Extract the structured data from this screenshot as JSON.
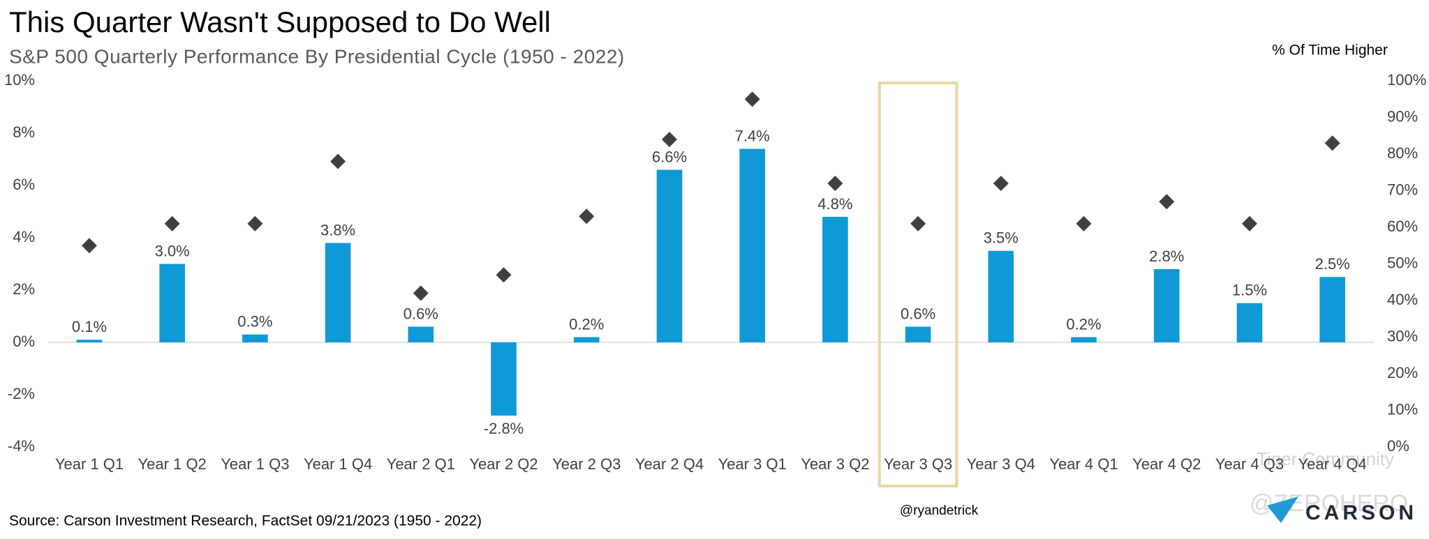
{
  "chart_data": {
    "type": "bar",
    "title": "This Quarter Wasn't Supposed to Do Well",
    "subtitle": "S&P 500 Quarterly Performance By Presidential Cycle (1950 - 2022)",
    "y2_label": "% Of Time Higher",
    "source": "Source: Carson Investment Research, FactSet 09/21/2023 (1950 - 2022)",
    "handle": "@ryandetrick",
    "logo": "CARSON",
    "watermarks": [
      "Tiger Community",
      "@ZEROHERO"
    ],
    "categories": [
      "Year 1 Q1",
      "Year 1 Q2",
      "Year 1 Q3",
      "Year 1 Q4",
      "Year 2 Q1",
      "Year 2 Q2",
      "Year 2 Q3",
      "Year 2 Q4",
      "Year 3 Q1",
      "Year 3 Q2",
      "Year 3 Q3",
      "Year 3 Q4",
      "Year 4 Q1",
      "Year 4 Q2",
      "Year 4 Q3",
      "Year 4 Q4"
    ],
    "series": [
      {
        "type": "bar",
        "color": "#0f99d6",
        "values": [
          0.1,
          3.0,
          0.3,
          3.8,
          0.6,
          -2.8,
          0.2,
          6.6,
          7.4,
          4.8,
          0.6,
          3.5,
          0.2,
          2.8,
          1.5,
          2.5
        ],
        "value_labels": [
          "0.1%",
          "3.0%",
          "0.3%",
          "3.8%",
          "0.6%",
          "-2.8%",
          "0.2%",
          "6.6%",
          "7.4%",
          "4.8%",
          "0.6%",
          "3.5%",
          "0.2%",
          "2.8%",
          "1.5%",
          "2.5%"
        ]
      },
      {
        "type": "scatter",
        "axis": "y2",
        "color": "#404040",
        "values": [
          55,
          61,
          61,
          78,
          42,
          47,
          63,
          84,
          95,
          72,
          61,
          72,
          61,
          67,
          61,
          83
        ]
      }
    ],
    "highlight": "Year 3 Q3",
    "ylim": [
      -4,
      10
    ],
    "yticks": [
      {
        "value": -4,
        "label": "-4%"
      },
      {
        "value": -2,
        "label": "-2%"
      },
      {
        "value": 0,
        "label": "0%"
      },
      {
        "value": 2,
        "label": "2%"
      },
      {
        "value": 4,
        "label": "4%"
      },
      {
        "value": 6,
        "label": "6%"
      },
      {
        "value": 8,
        "label": "8%"
      },
      {
        "value": 10,
        "label": "10%"
      }
    ],
    "y2lim": [
      0,
      100
    ],
    "y2ticks": [
      {
        "value": 0,
        "label": "0%"
      },
      {
        "value": 10,
        "label": "10%"
      },
      {
        "value": 20,
        "label": "20%"
      },
      {
        "value": 30,
        "label": "30%"
      },
      {
        "value": 40,
        "label": "40%"
      },
      {
        "value": 50,
        "label": "50%"
      },
      {
        "value": 60,
        "label": "60%"
      },
      {
        "value": 70,
        "label": "70%"
      },
      {
        "value": 80,
        "label": "80%"
      },
      {
        "value": 90,
        "label": "90%"
      },
      {
        "value": 100,
        "label": "100%"
      }
    ]
  }
}
